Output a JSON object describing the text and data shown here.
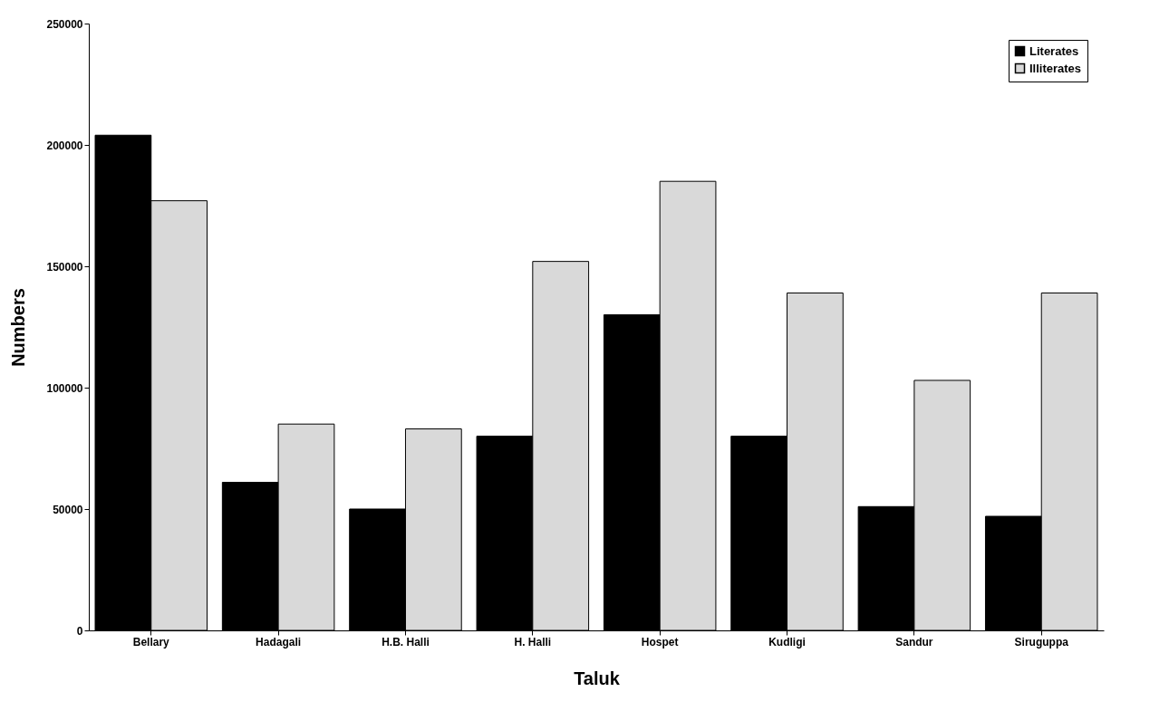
{
  "chart_data": {
    "type": "bar",
    "xlabel": "Taluk",
    "ylabel": "Numbers",
    "categories": [
      "Bellary",
      "Hadagali",
      "H.B. Halli",
      "H. Halli",
      "Hospet",
      "Kudligi",
      "Sandur",
      "Siruguppa"
    ],
    "series": [
      {
        "name": "Literates",
        "color": "#000000",
        "values": [
          204000,
          61000,
          50000,
          80000,
          130000,
          80000,
          51000,
          47000
        ]
      },
      {
        "name": "Illiterates",
        "color": "#d9d9d9",
        "values": [
          177000,
          85000,
          83000,
          152000,
          185000,
          139000,
          103000,
          139000
        ]
      }
    ],
    "ylim": [
      0,
      250000
    ],
    "yticks": [
      0,
      50000,
      100000,
      150000,
      200000,
      250000
    ],
    "grid": false,
    "legend": "top right"
  }
}
